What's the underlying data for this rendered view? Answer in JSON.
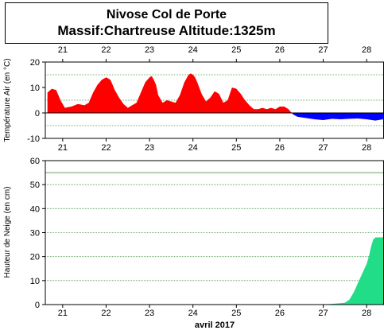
{
  "title": {
    "line1": "Nivose Col de Porte",
    "line2": "Massif:Chartreuse Altitude:1325m"
  },
  "month_label": "avril 2017",
  "colors": {
    "temp_positive": "#ff0000",
    "temp_negative": "#0000ff",
    "snow": "#22dd88",
    "grid": "#4d9a4d"
  },
  "chart_data": [
    {
      "type": "area",
      "name": "temperature",
      "ylabel": "Température Air (en °C)",
      "ylim": [
        -10,
        20
      ],
      "yticks": [
        -10,
        0,
        10,
        20
      ],
      "gridlines": [
        -5,
        5,
        15
      ],
      "xlim": [
        20.6,
        28.4
      ],
      "xticks": [
        21,
        22,
        23,
        24,
        25,
        26,
        27,
        28
      ],
      "x": [
        20.65,
        20.75,
        20.85,
        20.95,
        21.05,
        21.2,
        21.35,
        21.5,
        21.6,
        21.7,
        21.8,
        21.9,
        22.0,
        22.05,
        22.1,
        22.15,
        22.2,
        22.3,
        22.4,
        22.5,
        22.6,
        22.7,
        22.8,
        22.9,
        23.0,
        23.05,
        23.1,
        23.15,
        23.2,
        23.3,
        23.4,
        23.5,
        23.6,
        23.7,
        23.8,
        23.9,
        23.95,
        24.0,
        24.05,
        24.1,
        24.2,
        24.3,
        24.4,
        24.5,
        24.6,
        24.7,
        24.8,
        24.9,
        25.0,
        25.1,
        25.2,
        25.3,
        25.4,
        25.5,
        25.6,
        25.7,
        25.8,
        25.9,
        26.0,
        26.1,
        26.2,
        26.3,
        26.4,
        26.6,
        26.8,
        27.0,
        27.2,
        27.4,
        27.6,
        27.8,
        28.0,
        28.2,
        28.38
      ],
      "values": [
        8,
        9.5,
        9,
        5,
        2,
        2.5,
        3.5,
        3,
        4,
        8,
        11,
        13,
        14,
        13.5,
        13,
        11,
        9,
        6,
        3.5,
        2,
        3,
        4,
        8,
        12,
        14,
        14.5,
        13,
        11,
        7,
        4,
        5,
        4.5,
        4,
        7,
        12,
        15,
        15.5,
        15,
        14,
        12,
        7.5,
        4.5,
        6,
        8.5,
        7.5,
        4,
        5,
        10,
        9.5,
        7.5,
        5,
        3,
        1.5,
        1.5,
        2,
        1.5,
        2,
        1.5,
        2.5,
        2.5,
        1.5,
        -0.5,
        -1.5,
        -2,
        -2.5,
        -2.8,
        -2.3,
        -2.5,
        -2.3,
        -2.2,
        -2.5,
        -3,
        -2.5
      ]
    },
    {
      "type": "area",
      "name": "snow_depth",
      "ylabel": "Hauteur de Neige (en cm)",
      "xlabel": "avril 2017",
      "ylim": [
        0,
        60
      ],
      "yticks": [
        0,
        10,
        20,
        30,
        40,
        50,
        60
      ],
      "gridlines": [
        10,
        20,
        30,
        40,
        50,
        55
      ],
      "xlim": [
        20.6,
        28.4
      ],
      "xticks": [
        21,
        22,
        23,
        24,
        25,
        26,
        27,
        28
      ],
      "x": [
        20.6,
        27.0,
        27.2,
        27.4,
        27.5,
        27.6,
        27.7,
        27.8,
        27.9,
        28.0,
        28.05,
        28.1,
        28.15,
        28.2,
        28.3,
        28.4
      ],
      "values": [
        0,
        0,
        0.3,
        0.6,
        0.8,
        2,
        5,
        9,
        13,
        17,
        20,
        24,
        27,
        28,
        28,
        28
      ]
    }
  ]
}
